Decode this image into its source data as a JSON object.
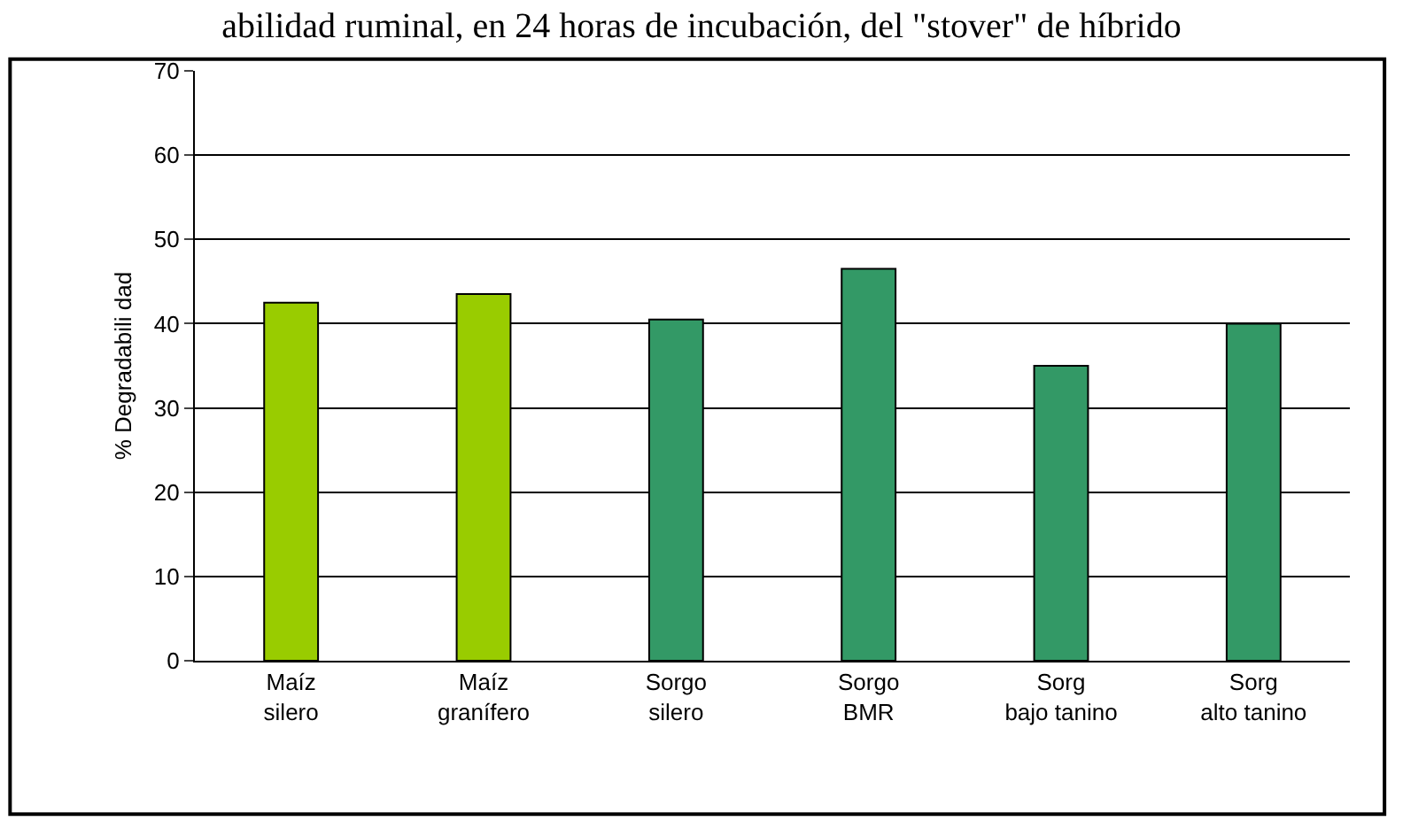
{
  "chart_data": {
    "type": "bar",
    "title": "abilidad ruminal, en 24 horas de incubación, del \"stover\" de híbrido",
    "ylabel": "% Degradabili dad",
    "categories": [
      "Maíz silero",
      "Maíz granífero",
      "Sorgo silero",
      "Sorgo BMR",
      "Sorg bajo tanino",
      "Sorg alto tanino"
    ],
    "values": [
      42.5,
      43.5,
      40.5,
      46.5,
      35,
      40
    ],
    "colors": [
      "#99cc00",
      "#99cc00",
      "#339966",
      "#339966",
      "#339966",
      "#339966"
    ],
    "ylim": [
      0,
      70
    ],
    "yticks": [
      0,
      10,
      20,
      30,
      40,
      50,
      60,
      70
    ],
    "grid": "y"
  }
}
